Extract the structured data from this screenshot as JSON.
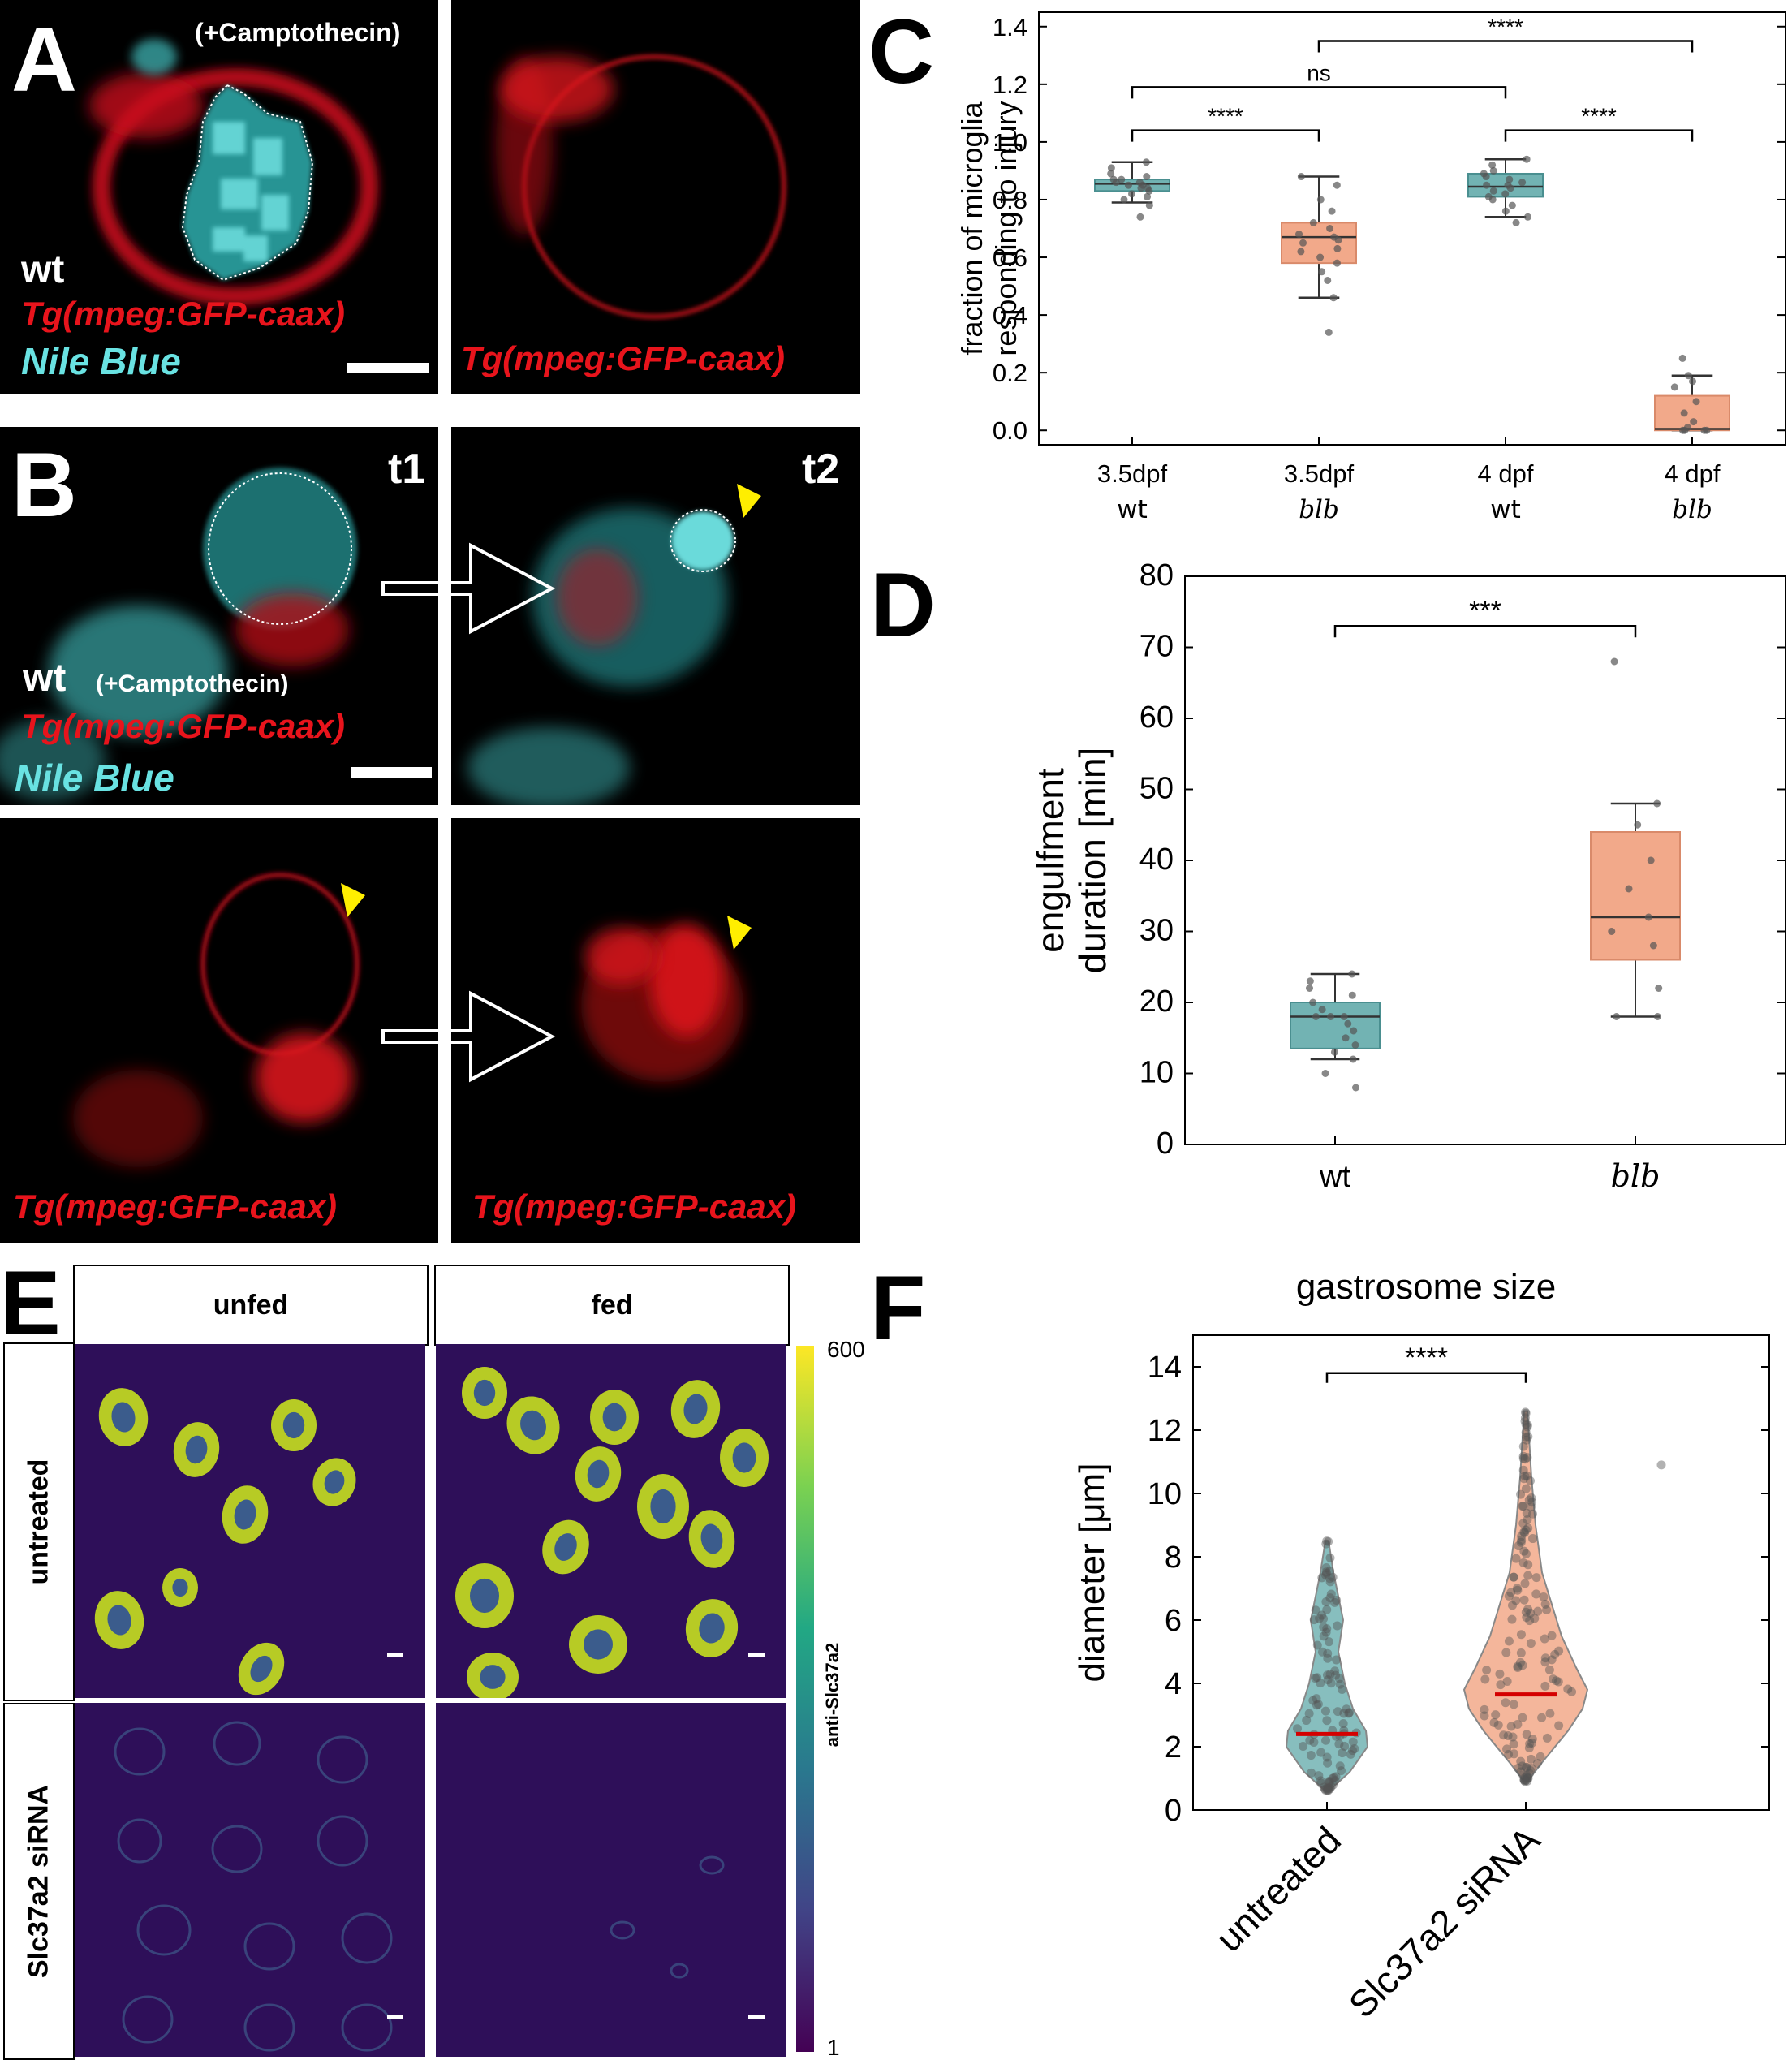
{
  "panel_letters": {
    "a": "A",
    "b": "B",
    "c": "C",
    "d": "D",
    "e": "E",
    "f": "F"
  },
  "panel_a": {
    "treatment": "(+Camptothecin)",
    "genotype": "wt",
    "channel_red": "Tg(mpeg:GFP-caax)",
    "channel_cyan": "Nile Blue",
    "right_label": "Tg(mpeg:GFP-caax)"
  },
  "panel_b": {
    "t1": "t1",
    "t2": "t2",
    "genotype": "wt",
    "treatment": "(+Camptothecin)",
    "channel_red": "Tg(mpeg:GFP-caax)",
    "channel_cyan": "Nile Blue",
    "bottom_left_label": "Tg(mpeg:GFP-caax)",
    "bottom_right_label": "Tg(mpeg:GFP-caax)"
  },
  "panel_e": {
    "col_unfed": "unfed",
    "col_fed": "fed",
    "row_untreated": "untreated",
    "row_sirna": "Slc37a2 siRNA",
    "colorbar_label": "anti-Slc37a2",
    "colorbar_max": "600",
    "colorbar_min": "1"
  },
  "colors": {
    "teal": "#72b3b3",
    "salmon": "#f2a98a",
    "median_red": "#d40000",
    "yellow_arrow": "#ffee00"
  },
  "chart_data": [
    {
      "panel": "C",
      "type": "box",
      "ylabel": "fraction of microglia responding to injury",
      "ylabel_lines": [
        "fraction of microglia",
        "responding to injury"
      ],
      "ylim": [
        -0.05,
        1.45
      ],
      "yticks": [
        "0.0",
        "0.2",
        "0.4",
        "0.6",
        "0.8",
        "1.0",
        "1.2",
        "1.4"
      ],
      "categories": [
        {
          "line1": "3.5dpf",
          "line2": "wt"
        },
        {
          "line1": "3.5dpf",
          "line2": "blb"
        },
        {
          "line1": "4 dpf",
          "line2": "wt"
        },
        {
          "line1": "4 dpf",
          "line2": "blb"
        }
      ],
      "boxes": [
        {
          "color": "teal",
          "q1": 0.83,
          "median": 0.855,
          "q3": 0.87,
          "whisker_low": 0.79,
          "whisker_high": 0.93
        },
        {
          "color": "salmon",
          "q1": 0.58,
          "median": 0.67,
          "q3": 0.72,
          "whisker_low": 0.46,
          "whisker_high": 0.88
        },
        {
          "color": "teal",
          "q1": 0.81,
          "median": 0.845,
          "q3": 0.89,
          "whisker_low": 0.74,
          "whisker_high": 0.94
        },
        {
          "color": "salmon",
          "q1": 0.0,
          "median": 0.005,
          "q3": 0.12,
          "whisker_low": 0.0,
          "whisker_high": 0.19
        }
      ],
      "points": [
        [
          0.93,
          0.91,
          0.89,
          0.88,
          0.87,
          0.87,
          0.86,
          0.86,
          0.85,
          0.85,
          0.84,
          0.84,
          0.83,
          0.82,
          0.81,
          0.8,
          0.78,
          0.74
        ],
        [
          0.88,
          0.85,
          0.8,
          0.76,
          0.72,
          0.7,
          0.68,
          0.67,
          0.66,
          0.65,
          0.63,
          0.62,
          0.6,
          0.58,
          0.55,
          0.52,
          0.46,
          0.34
        ],
        [
          0.94,
          0.92,
          0.9,
          0.89,
          0.88,
          0.87,
          0.86,
          0.85,
          0.85,
          0.84,
          0.83,
          0.82,
          0.81,
          0.8,
          0.78,
          0.76,
          0.74,
          0.72
        ],
        [
          0.25,
          0.19,
          0.17,
          0.15,
          0.1,
          0.06,
          0.03,
          0.01,
          0.0,
          0.0,
          0.0,
          0.0
        ]
      ],
      "significance": [
        {
          "from": 0,
          "to": 1,
          "y": 1.04,
          "label": "****"
        },
        {
          "from": 0,
          "to": 2,
          "y": 1.19,
          "label": "ns"
        },
        {
          "from": 2,
          "to": 3,
          "y": 1.04,
          "label": "****"
        },
        {
          "from": 1,
          "to": 3,
          "y": 1.35,
          "label": "****"
        }
      ]
    },
    {
      "panel": "D",
      "type": "box",
      "ylabel": "engulfment duration [min]",
      "ylabel_lines": [
        "engulfment",
        "duration [min]"
      ],
      "ylim": [
        0,
        80
      ],
      "yticks": [
        "0",
        "10",
        "20",
        "30",
        "40",
        "50",
        "60",
        "70",
        "80"
      ],
      "categories": [
        {
          "line1": "wt"
        },
        {
          "line1": "blb"
        }
      ],
      "boxes": [
        {
          "color": "teal",
          "q1": 13.5,
          "median": 18,
          "q3": 20,
          "whisker_low": 12,
          "whisker_high": 24
        },
        {
          "color": "salmon",
          "q1": 26,
          "median": 32,
          "q3": 44,
          "whisker_low": 18,
          "whisker_high": 48
        }
      ],
      "points": [
        [
          24,
          23,
          22,
          21,
          20,
          19,
          18,
          18,
          18,
          17,
          16,
          15,
          14,
          13,
          12,
          10,
          8
        ],
        [
          68,
          48,
          45,
          40,
          36,
          32,
          30,
          28,
          22,
          18,
          18
        ]
      ],
      "significance": [
        {
          "from": 0,
          "to": 1,
          "y": 73,
          "label": "***"
        }
      ]
    },
    {
      "panel": "F",
      "type": "violin",
      "title": "gastrosome size",
      "ylabel": "diameter [μm]",
      "ylim": [
        0,
        15
      ],
      "yticks": [
        "0",
        "2",
        "4",
        "6",
        "8",
        "10",
        "12",
        "14"
      ],
      "categories": [
        "untreated",
        "Slc37a2 siRNA"
      ],
      "violins": [
        {
          "color": "teal",
          "median": 2.4,
          "min": 0.6,
          "max": 8.5
        },
        {
          "color": "salmon",
          "median": 3.65,
          "min": 0.9,
          "max": 12.6
        }
      ],
      "significance": [
        {
          "from": 0,
          "to": 1,
          "y": 13.8,
          "label": "****"
        }
      ]
    }
  ]
}
